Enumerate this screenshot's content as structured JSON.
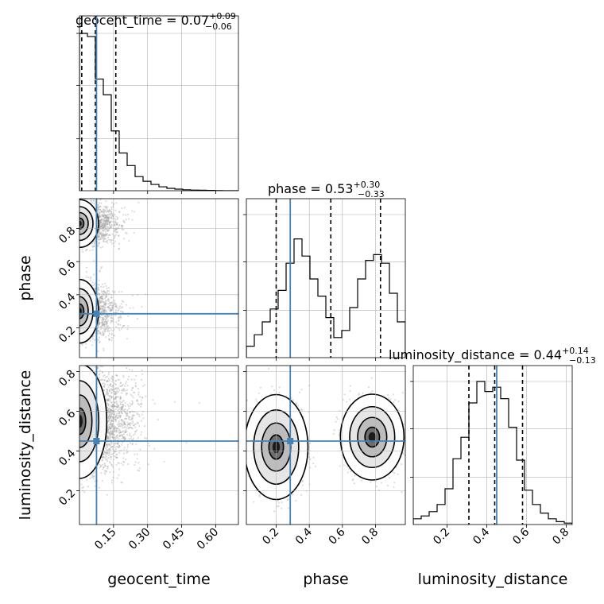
{
  "chart_data": {
    "type": "corner",
    "title_parts": [
      {
        "name": "geocent_time",
        "median": "0.07",
        "plus": "+0.09",
        "minus": "−0.06"
      },
      {
        "name": "phase",
        "median": "0.53",
        "plus": "+0.30",
        "minus": "−0.33"
      },
      {
        "name": "luminosity_distance",
        "median": "0.44",
        "plus": "+0.14",
        "minus": "−0.13"
      }
    ],
    "parameters": [
      "geocent_time",
      "phase",
      "luminosity_distance"
    ],
    "axis_labels": {
      "x": [
        "geocent_time",
        "phase",
        "luminosity_distance"
      ],
      "y": [
        "phase",
        "luminosity_distance"
      ]
    },
    "ranges": {
      "geocent_time": [
        0.0,
        0.7
      ],
      "phase": [
        0.02,
        0.98
      ],
      "luminosity_distance": [
        0.03,
        0.83
      ]
    },
    "ticks": {
      "geocent_time": [
        0.15,
        0.3,
        0.45,
        0.6
      ],
      "geocent_time_labels": [
        "0.15",
        "0.30",
        "0.45",
        "0.60"
      ],
      "phase": [
        0.2,
        0.4,
        0.6,
        0.8
      ],
      "phase_labels": [
        "0.2",
        "0.4",
        "0.6",
        "0.8"
      ],
      "luminosity_distance": [
        0.2,
        0.4,
        0.6,
        0.8
      ],
      "luminosity_distance_labels": [
        "0.2",
        "0.4",
        "0.6",
        "0.8"
      ]
    },
    "truth": {
      "geocent_time": 0.075,
      "phase": 0.285,
      "luminosity_distance": 0.45
    },
    "quantiles": {
      "geocent_time": [
        0.01,
        0.07,
        0.16
      ],
      "phase": [
        0.2,
        0.53,
        0.83
      ],
      "luminosity_distance": [
        0.31,
        0.44,
        0.58
      ]
    },
    "histograms": {
      "geocent_time": {
        "edges_start": 0.0,
        "bin_width": 0.035,
        "values": [
          1.0,
          0.98,
          0.71,
          0.61,
          0.38,
          0.24,
          0.16,
          0.09,
          0.06,
          0.04,
          0.025,
          0.015,
          0.01,
          0.006,
          0.004,
          0.003,
          0.002,
          0.001,
          0.0,
          0.0
        ]
      },
      "phase": {
        "edges_start": 0.02,
        "bin_width": 0.048,
        "values": [
          0.08,
          0.16,
          0.25,
          0.34,
          0.47,
          0.66,
          0.83,
          0.71,
          0.55,
          0.43,
          0.28,
          0.14,
          0.19,
          0.35,
          0.55,
          0.68,
          0.72,
          0.66,
          0.45,
          0.25
        ]
      },
      "luminosity_distance": {
        "edges_start": 0.03,
        "bin_width": 0.04,
        "values": [
          0.04,
          0.06,
          0.09,
          0.14,
          0.25,
          0.46,
          0.61,
          0.85,
          1.0,
          0.93,
          0.96,
          0.88,
          0.68,
          0.45,
          0.24,
          0.14,
          0.08,
          0.04,
          0.02,
          0.01
        ]
      }
    },
    "density_2d": {
      "phase_vs_geocent_time": {
        "modes": [
          {
            "x": 0.0,
            "y": 0.83,
            "sx": 0.035,
            "sy": 0.06,
            "w": 1.0
          },
          {
            "x": 0.0,
            "y": 0.3,
            "sx": 0.035,
            "sy": 0.08,
            "w": 1.0
          }
        ]
      },
      "luminosity_distance_vs_geocent_time": {
        "modes": [
          {
            "x": 0.0,
            "y": 0.55,
            "sx": 0.05,
            "sy": 0.12,
            "w": 1.0
          }
        ]
      },
      "luminosity_distance_vs_phase": {
        "modes": [
          {
            "x": 0.2,
            "y": 0.42,
            "sx": 0.08,
            "sy": 0.11,
            "w": 1.0
          },
          {
            "x": 0.78,
            "y": 0.47,
            "sx": 0.08,
            "sy": 0.09,
            "w": 1.0
          }
        ]
      }
    },
    "colors": {
      "truth": "#4682b4",
      "hist": "#000000",
      "points": "#9a9a9a",
      "grid": "#b0b0b0"
    },
    "grid": true
  }
}
